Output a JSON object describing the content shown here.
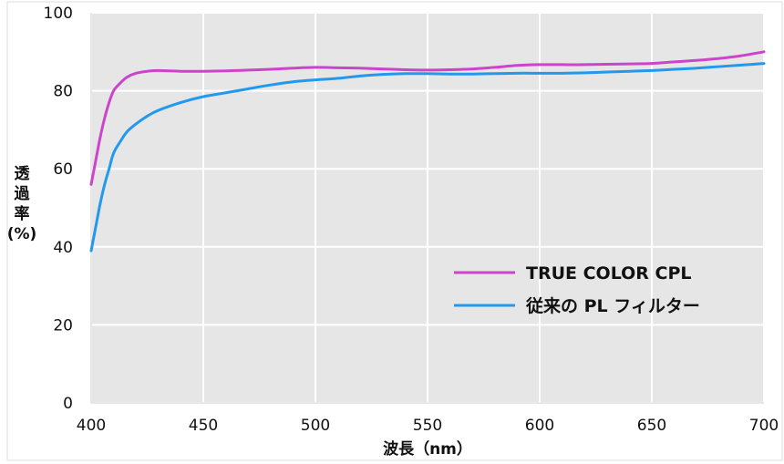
{
  "chart_data": {
    "type": "line",
    "xlabel": "波長（nm）",
    "ylabel_lines": [
      "透",
      "過",
      "率",
      "(%)"
    ],
    "xlim": [
      400,
      700
    ],
    "ylim": [
      0,
      100
    ],
    "x_ticks": [
      400,
      450,
      500,
      550,
      600,
      650,
      700
    ],
    "y_ticks": [
      0,
      20,
      40,
      60,
      80,
      100
    ],
    "grid": true,
    "legend_position": "bottom-right",
    "background": "#e6e6e6",
    "series": [
      {
        "name": "TRUE COLOR CPL",
        "color": "#cc44cc",
        "x": [
          400,
          402,
          404,
          406,
          408,
          410,
          413,
          416,
          420,
          425,
          430,
          440,
          450,
          460,
          470,
          480,
          490,
          500,
          510,
          520,
          530,
          540,
          550,
          560,
          570,
          580,
          590,
          600,
          610,
          620,
          630,
          640,
          650,
          660,
          670,
          680,
          690,
          700
        ],
        "values": [
          56,
          62,
          68,
          73,
          77,
          80,
          82,
          83.5,
          84.5,
          85,
          85.2,
          85,
          85,
          85.1,
          85.3,
          85.5,
          85.8,
          86,
          85.9,
          85.8,
          85.6,
          85.4,
          85.3,
          85.4,
          85.6,
          86,
          86.5,
          86.7,
          86.7,
          86.7,
          86.8,
          86.9,
          87,
          87.4,
          87.8,
          88.3,
          89,
          90
        ]
      },
      {
        "name": "従来の PL フィルター",
        "color": "#2299ee",
        "x": [
          400,
          402,
          404,
          406,
          408,
          410,
          413,
          416,
          420,
          425,
          430,
          440,
          450,
          460,
          470,
          480,
          490,
          500,
          510,
          520,
          530,
          540,
          550,
          560,
          570,
          580,
          590,
          600,
          610,
          620,
          630,
          640,
          650,
          660,
          670,
          680,
          690,
          700
        ],
        "values": [
          39,
          45,
          51,
          56,
          60,
          64,
          67,
          69.5,
          71.5,
          73.5,
          75,
          77,
          78.5,
          79.5,
          80.5,
          81.5,
          82.3,
          82.8,
          83.2,
          83.8,
          84.2,
          84.4,
          84.4,
          84.3,
          84.3,
          84.4,
          84.5,
          84.5,
          84.5,
          84.6,
          84.8,
          85,
          85.2,
          85.5,
          85.8,
          86.2,
          86.6,
          87
        ]
      }
    ]
  }
}
